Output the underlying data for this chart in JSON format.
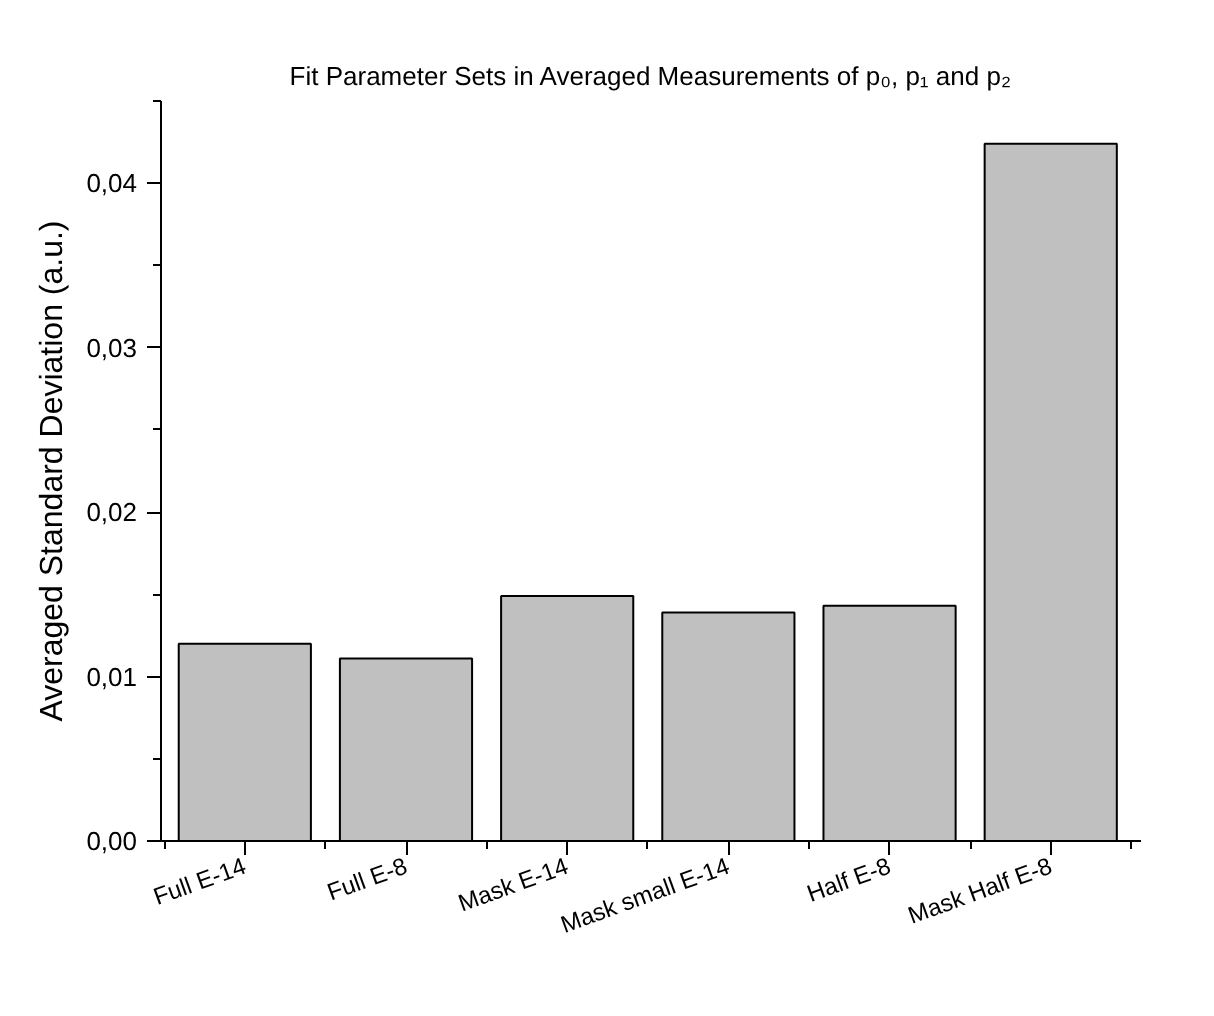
{
  "chart_data": {
    "type": "bar",
    "title": "Fit Parameter Sets in Averaged Measurements of p₀, p₁ and p₂",
    "ylabel": "Averaged Standard Deviation (a.u.)",
    "categories": [
      "Full E-14",
      "Full E-8",
      "Mask E-14",
      "Mask small E-14",
      "Half E-8",
      "Mask Half E-8"
    ],
    "values": [
      0.012,
      0.0111,
      0.0149,
      0.0139,
      0.0143,
      0.0424
    ],
    "color": "#c0c0c0",
    "ylim": [
      0,
      0.045
    ],
    "yticks": [
      {
        "value": 0,
        "label": "0,00"
      },
      {
        "value": 0.01,
        "label": "0,01"
      },
      {
        "value": 0.02,
        "label": "0,02"
      },
      {
        "value": 0.03,
        "label": "0,03"
      },
      {
        "value": 0.04,
        "label": "0,04"
      }
    ],
    "grid": false
  }
}
